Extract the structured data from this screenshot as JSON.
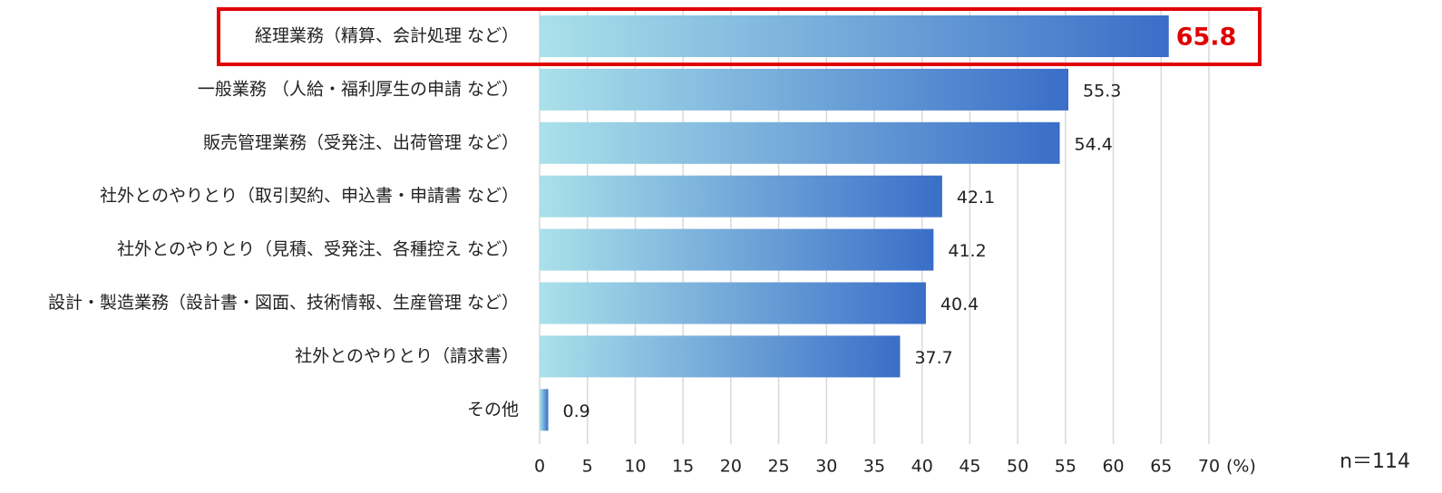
{
  "chart_data": {
    "type": "hbar",
    "categories": [
      "経理業務（精算、会計処理 など）",
      "一般業務 （人給・福利厚生の申請 など）",
      "販売管理業務（受発注、出荷管理 など）",
      "社外とのやりとり（取引契約、申込書・申請書 など）",
      "社外とのやりとり（見積、受発注、各種控え など）",
      "設計・製造業務（設計書・図面、技術情報、生産管理 など）",
      "社外とのやりとり（請求書）",
      "その他"
    ],
    "values": [
      65.8,
      55.3,
      54.4,
      42.1,
      41.2,
      40.4,
      37.7,
      0.9
    ],
    "color": [
      "#aae1ea",
      "#3a6ec8"
    ],
    "xlim": [
      0,
      70
    ],
    "xticks": [
      0,
      5,
      10,
      15,
      20,
      25,
      30,
      35,
      40,
      45,
      50,
      55,
      60,
      65,
      70
    ],
    "x_unit": "(%)",
    "note": "n＝114",
    "grid": true,
    "highlight": {
      "index": 0,
      "color": "#e00000"
    }
  }
}
